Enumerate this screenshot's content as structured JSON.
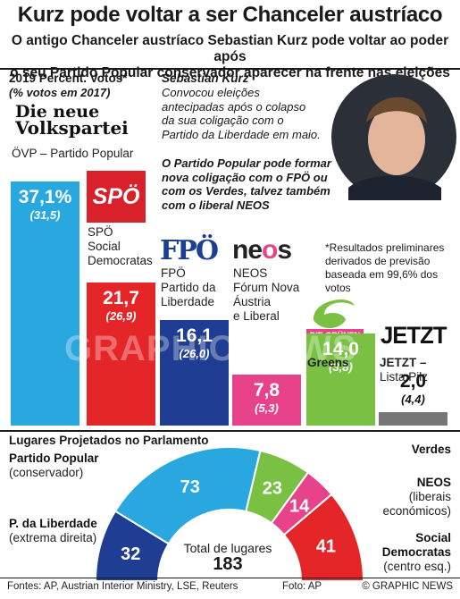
{
  "header": {
    "title": "Kurz pode voltar a ser Chanceler austríaco",
    "subtitle_line1": "O antigo Chanceler austríaco Sebastian Kurz pode voltar ao poder após",
    "subtitle_line2": "o seu Partido Popular conservador aparecer na frente nas eleições"
  },
  "votes_section": {
    "heading": "2019 Percent. Votos*",
    "subheading": "(% votos em 2017)",
    "ovp_logo_line1": "Die neue",
    "ovp_logo_line2": "Volkspartei",
    "spo_logo": "SPÖ",
    "fpo_logo": "FPÖ",
    "neos_logo_a": "ne",
    "neos_logo_b": "o",
    "neos_logo_c": "s",
    "greens_logo": "DIE GRÜNEN",
    "jetzt_logo": "JETZT"
  },
  "kurz": {
    "name": "Sebastian Kurz",
    "text": "Convocou eleições antecipadas após o colapso da sua coligação com o Partido da Liberdade em maio.",
    "bold_text": "O Partido Popular pode formar nova coligação com o FPÖ ou com os Verdes, talvez também com o liberal NEOS"
  },
  "note": "*Resultados preliminares derivados de previsão baseada em 99,6% dos votos",
  "watermark": "GRAPHIC NEWS",
  "chart_data": [
    {
      "type": "bar",
      "title": "2019 Percent. Votos*",
      "subtitle": "(% votos em 2017)",
      "categories": [
        "ÖVP – Partido Popular",
        "SPÖ Social Democratas",
        "FPÖ Partido da Liberdade",
        "NEOS Fórum Nova Áustria e Liberal",
        "Greens",
        "JETZT – Lista Pilz"
      ],
      "series": [
        {
          "name": "2019",
          "values": [
            37.1,
            21.7,
            16.1,
            7.8,
            14.0,
            2.0
          ],
          "labels": [
            "37,1%",
            "21,7",
            "16,1",
            "7,8",
            "14,0",
            "2,0"
          ]
        },
        {
          "name": "2017",
          "values": [
            31.5,
            26.9,
            26.0,
            5.3,
            3.8,
            4.4
          ],
          "labels": [
            "(31,5)",
            "(26,9)",
            "(26,0)",
            "(5,3)",
            "(3,8)",
            "(4,4)"
          ]
        }
      ],
      "colors": [
        "#29a7df",
        "#e52629",
        "#1f3e93",
        "#e8438a",
        "#7ac143",
        "#777777"
      ],
      "party_labels": [
        [
          "ÖVP – Partido Popular"
        ],
        [
          "SPÖ",
          "Social",
          "Democratas"
        ],
        [
          "FPÖ",
          "Partido da",
          "Liberdade"
        ],
        [
          "NEOS",
          "Fórum Nova",
          "Áustria",
          "e Liberal"
        ],
        [
          "Greens"
        ],
        [
          "JETZT –",
          "Lista Pilz"
        ]
      ]
    },
    {
      "type": "pie",
      "title": "Lugares Projetados no Parlamento",
      "categories": [
        "P. da Liberdade",
        "Partido Popular",
        "Verdes",
        "NEOS",
        "Social Democratas"
      ],
      "values": [
        32,
        73,
        23,
        14,
        41
      ],
      "colors": [
        "#1f3e93",
        "#29a7df",
        "#7ac143",
        "#e8438a",
        "#e52629"
      ],
      "total_label": "Total de lugares",
      "total": 183
    }
  ],
  "seats_labels": {
    "heading": "Lugares Projetados no Parlamento",
    "popular_name": "Partido Popular",
    "popular_desc": "(conservador)",
    "liberdade_name": "P. da Liberdade",
    "liberdade_desc": "(extrema direita)",
    "verdes_name": "Verdes",
    "neos_name": "NEOS",
    "neos_desc1": "(liberais",
    "neos_desc2": "económicos)",
    "social_name1": "Social",
    "social_name2": "Democratas",
    "social_desc": "(centro esq.)"
  },
  "footer": {
    "sources": "Fontes: AP, Austrian Interior Ministry, LSE, Reuters",
    "photo": "Foto: AP",
    "copyright": "© GRAPHIC NEWS"
  }
}
